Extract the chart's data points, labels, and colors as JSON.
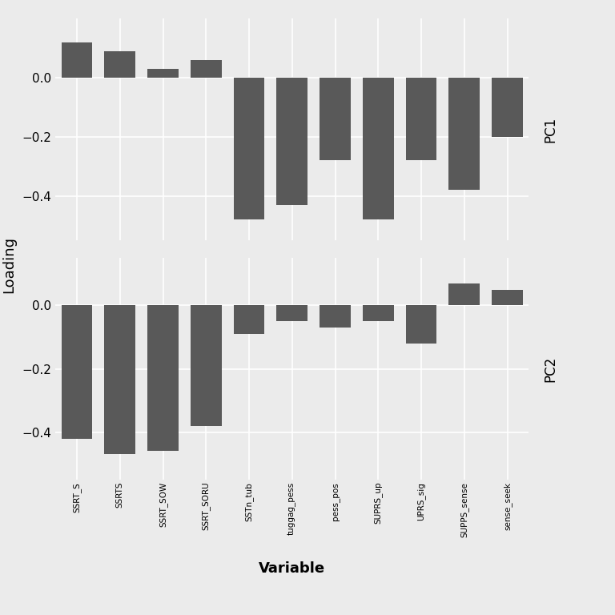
{
  "variables": [
    "SSRT_S",
    "SSRTS",
    "SSRT_SOW",
    "SSRT_SORU",
    "SSTn_tub",
    "tuggag_pess",
    "pess_pos",
    "SUPRS_up",
    "UPRS_sig",
    "SUPPS_sense",
    "sense_seek"
  ],
  "pc1": [
    0.12,
    0.09,
    0.03,
    0.06,
    -0.48,
    -0.43,
    -0.28,
    -0.48,
    -0.28,
    -0.38,
    -0.2
  ],
  "pc2": [
    -0.42,
    -0.47,
    -0.46,
    -0.38,
    -0.09,
    -0.05,
    -0.07,
    -0.05,
    -0.12,
    0.07,
    0.05
  ],
  "bar_color": "#595959",
  "background_color": "#ebebeb",
  "panel_background": "#ebebeb",
  "grid_color": "#ffffff",
  "ylabel": "Loading",
  "xlabel": "Variable",
  "pc1_label": "PC1",
  "pc2_label": "PC2",
  "ylim_pc1": [
    -0.55,
    0.2
  ],
  "ylim_pc2": [
    -0.55,
    0.15
  ],
  "yticks": [
    0.0,
    -0.2,
    -0.4
  ]
}
